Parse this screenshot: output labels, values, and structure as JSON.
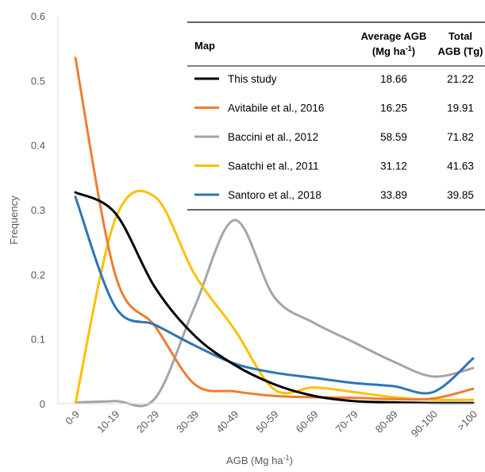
{
  "chart_data": {
    "type": "line",
    "title": "",
    "xlabel": "AGB (Mg ha",
    "xlabel_sup": "-1",
    "xlabel_end": ")",
    "ylabel": "Frequency",
    "ylim": [
      0,
      0.6
    ],
    "yticks": [
      0,
      0.1,
      0.2,
      0.3,
      0.4,
      0.5,
      0.6
    ],
    "ytick_labels": [
      "0",
      "0.1",
      "0.2",
      "0.3",
      "0.4",
      "0.5",
      "0.6"
    ],
    "grid": false,
    "smooth": true,
    "legend_position": "top-right",
    "categories": [
      "0-9",
      "10-19",
      "20-29",
      "30-39",
      "40-49",
      "50-59",
      "60-69",
      "70-79",
      "80-89",
      "90-100",
      ">100"
    ],
    "series": [
      {
        "name": "This study",
        "color": "#000000",
        "values": [
          0.327,
          0.295,
          0.18,
          0.105,
          0.06,
          0.03,
          0.012,
          0.004,
          0.002,
          0.001,
          0.001
        ]
      },
      {
        "name": "Avitabile et al., 2016",
        "color": "#ED7D31",
        "values": [
          0.535,
          0.2,
          0.12,
          0.03,
          0.019,
          0.012,
          0.01,
          0.009,
          0.007,
          0.008,
          0.023
        ]
      },
      {
        "name": "Baccini et al., 2012",
        "color": "#A5A5A5",
        "values": [
          0.002,
          0.004,
          0.008,
          0.15,
          0.284,
          0.165,
          0.125,
          0.095,
          0.065,
          0.042,
          0.055
        ]
      },
      {
        "name": "Saatchi et al., 2011",
        "color": "#FFC000",
        "values": [
          0.001,
          0.285,
          0.32,
          0.2,
          0.115,
          0.022,
          0.025,
          0.018,
          0.01,
          0.006,
          0.006
        ]
      },
      {
        "name": "Santoro et al., 2018",
        "color": "#2E75B6",
        "values": [
          0.32,
          0.15,
          0.122,
          0.09,
          0.062,
          0.048,
          0.04,
          0.032,
          0.027,
          0.018,
          0.07
        ]
      }
    ],
    "table": {
      "col_map": "Map",
      "col_avg_line1": "Average AGB",
      "col_avg_line2_pre": "(Mg ha",
      "col_avg_line2_sup": "-1",
      "col_avg_line2_post": ")",
      "col_total_line1": "Total",
      "col_total_line2": "AGB (Tg)",
      "rows": [
        {
          "name": "This study",
          "avg": "18.66",
          "total": "21.22"
        },
        {
          "name": "Avitabile et al., 2016",
          "avg": "16.25",
          "total": "19.91"
        },
        {
          "name": "Baccini et al., 2012",
          "avg": "58.59",
          "total": "71.82"
        },
        {
          "name": "Saatchi et al., 2011",
          "avg": "31.12",
          "total": "41.63"
        },
        {
          "name": "Santoro et al., 2018",
          "avg": "33.89",
          "total": "39.85"
        }
      ]
    }
  }
}
